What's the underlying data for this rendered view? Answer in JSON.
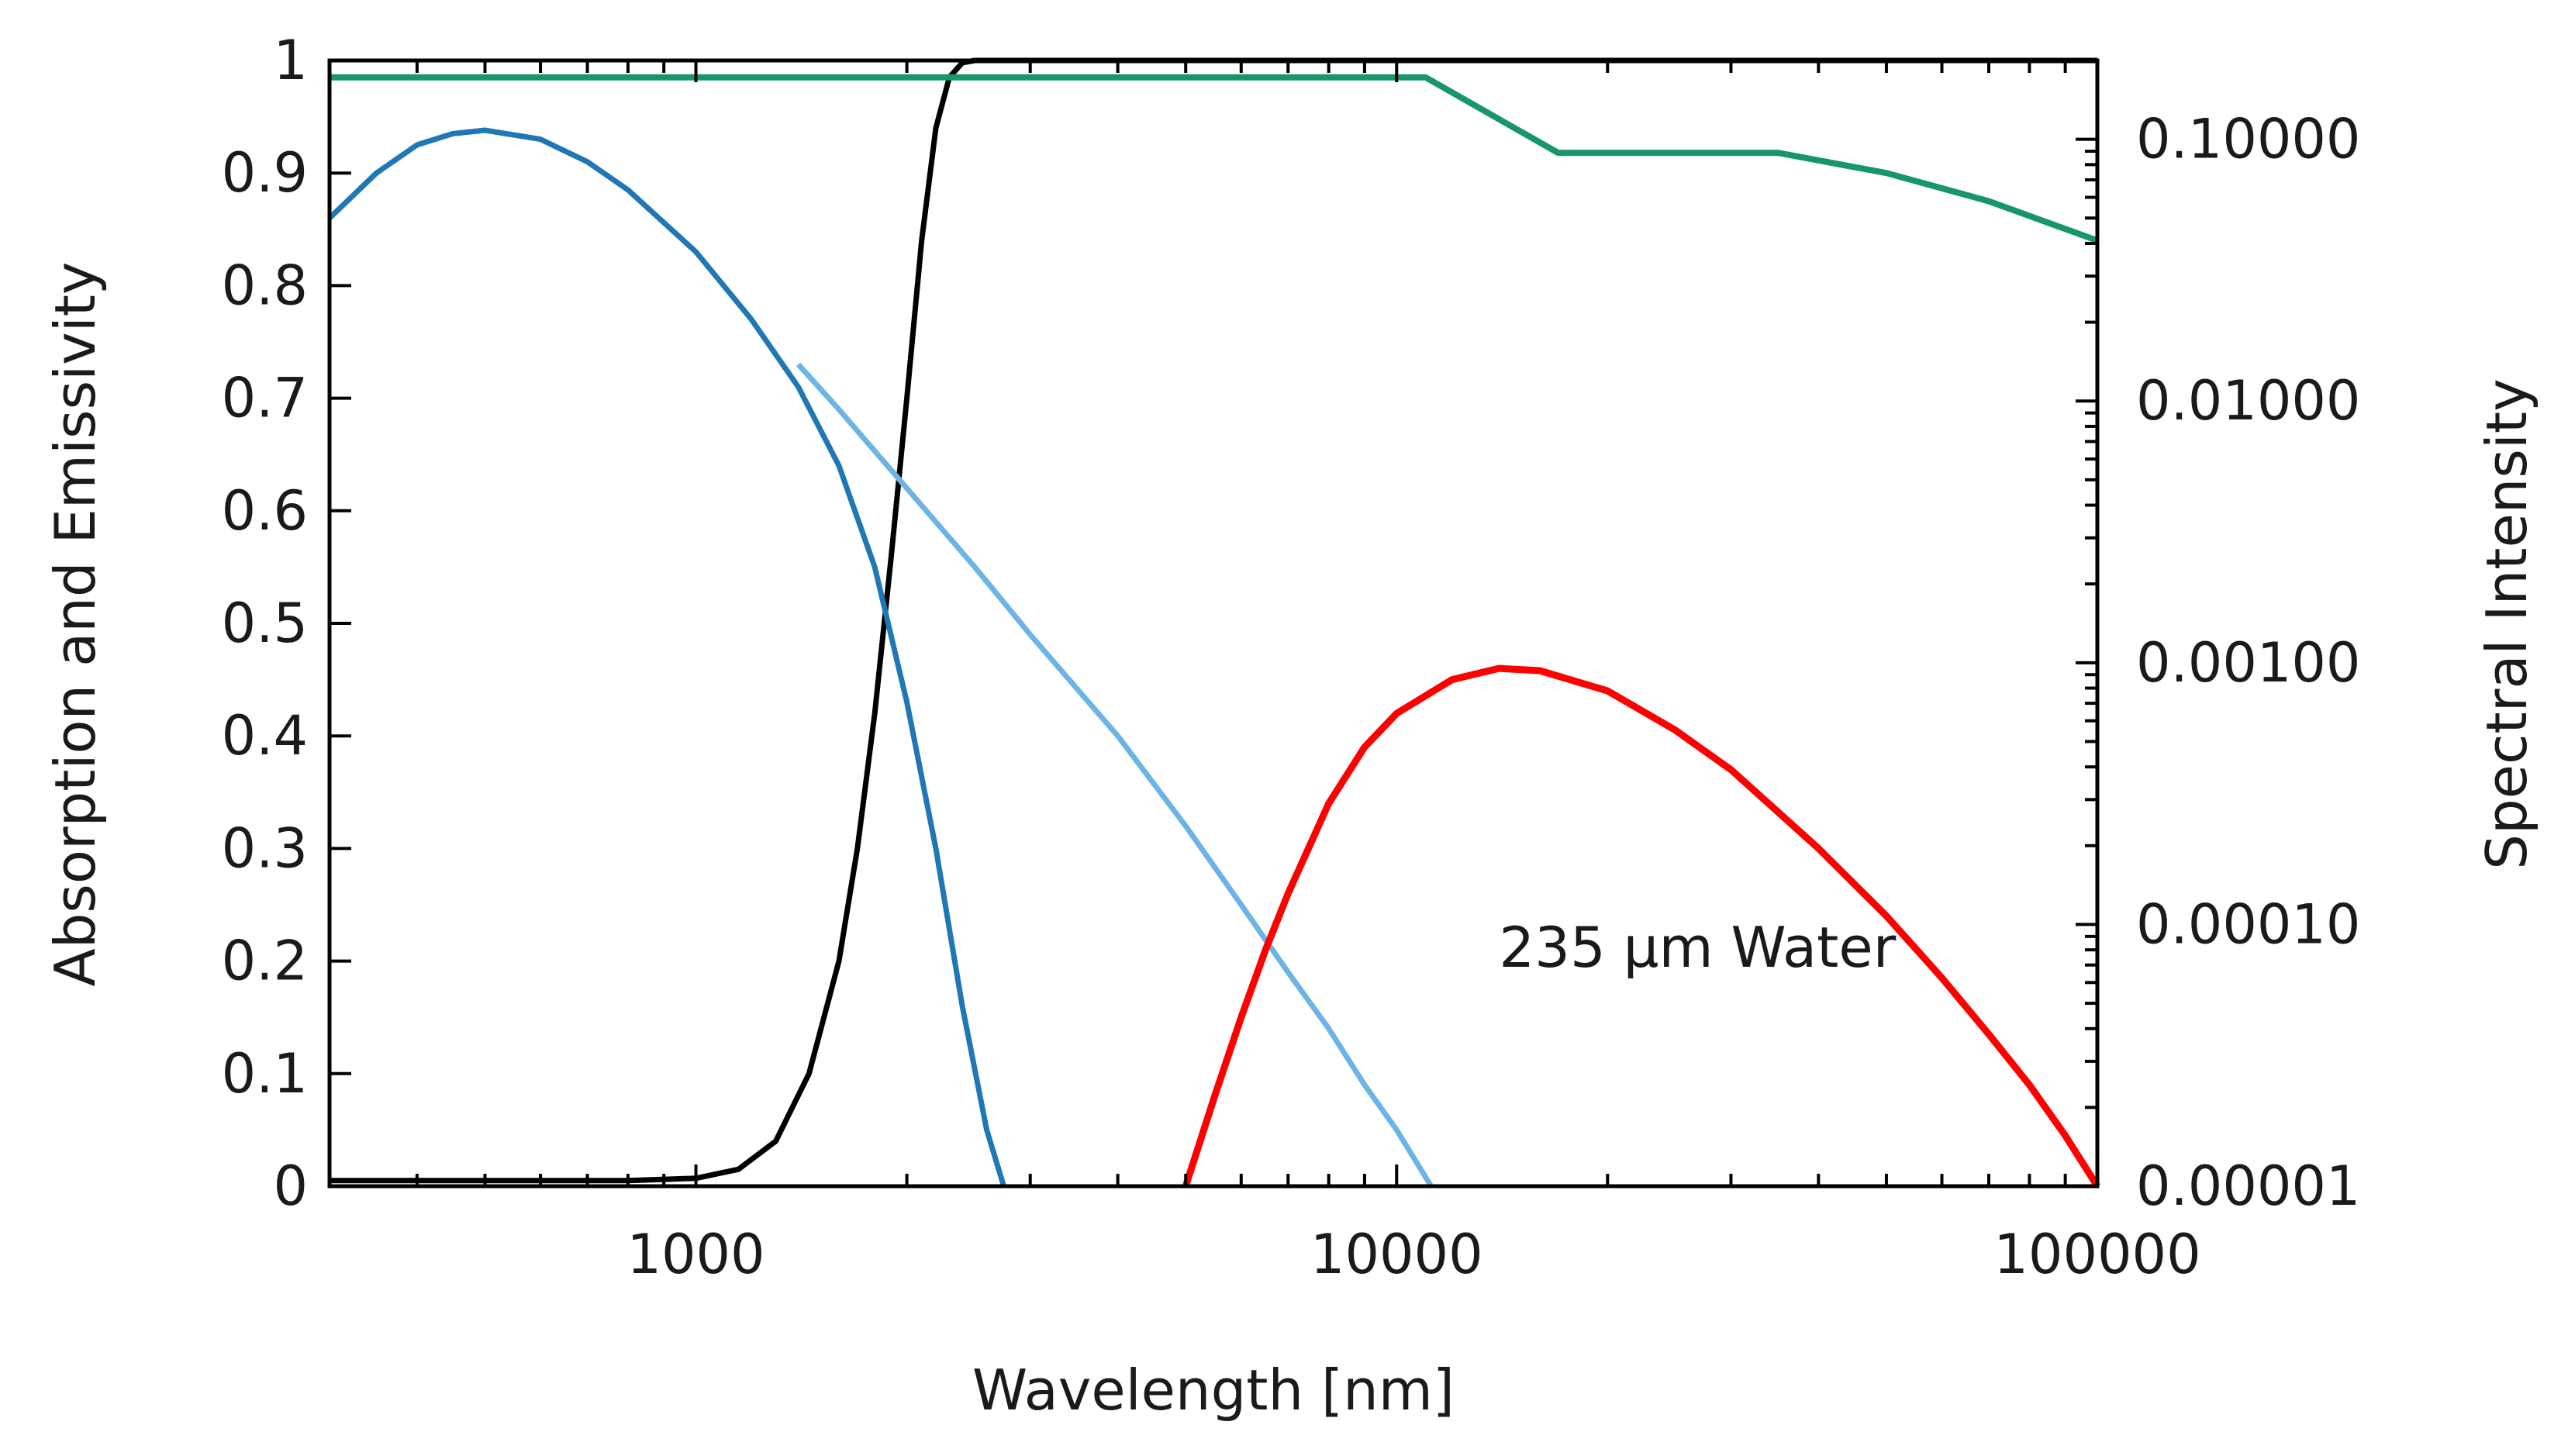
{
  "chart_data": {
    "type": "line",
    "title": "",
    "xlabel": "Wavelength [nm]",
    "ylabel": "Absorption and Emissivity",
    "y2label": "Spectral Intensity",
    "x_scale": "log",
    "xlim": [
      300,
      100000
    ],
    "ylim": [
      0,
      1
    ],
    "y2_scale": "log",
    "y2lim": [
      1e-05,
      0.2
    ],
    "x_ticks": [
      1000,
      10000,
      100000
    ],
    "x_tick_labels": [
      "1000",
      "10000",
      "100000"
    ],
    "y_ticks": [
      0,
      0.1,
      0.2,
      0.3,
      0.4,
      0.5,
      0.6,
      0.7,
      0.8,
      0.9,
      1
    ],
    "y_tick_labels": [
      "0",
      "0.1",
      "0.2",
      "0.3",
      "0.4",
      "0.5",
      "0.6",
      "0.7",
      "0.8",
      "0.9",
      "1"
    ],
    "y2_ticks": [
      1e-05,
      0.0001,
      0.001,
      0.01,
      0.1
    ],
    "y2_tick_labels": [
      "0.00001",
      "0.00010",
      "0.00100",
      "0.01000",
      "0.10000"
    ],
    "grid": false,
    "annotations": [
      {
        "text": "235 µm Water",
        "x": 14000,
        "y": 0.195
      }
    ],
    "series": [
      {
        "color": "#000000",
        "axis": "left",
        "x": [
          300,
          800,
          1000,
          1150,
          1300,
          1450,
          1600,
          1700,
          1800,
          1900,
          2000,
          2100,
          2200,
          2300,
          2400,
          2500,
          3000,
          10000,
          100000
        ],
        "y": [
          0.005,
          0.005,
          0.007,
          0.015,
          0.04,
          0.1,
          0.2,
          0.3,
          0.42,
          0.56,
          0.7,
          0.84,
          0.94,
          0.985,
          0.998,
          1.0,
          1.0,
          1.0,
          1.0
        ]
      },
      {
        "color": "#1f77b4",
        "axis": "left",
        "x": [
          300,
          350,
          400,
          450,
          500,
          600,
          700,
          800,
          1000,
          1200,
          1400,
          1600,
          1800,
          2000,
          2200,
          2400,
          2600,
          2750
        ],
        "y": [
          0.86,
          0.9,
          0.925,
          0.935,
          0.938,
          0.93,
          0.91,
          0.885,
          0.83,
          0.77,
          0.71,
          0.64,
          0.55,
          0.43,
          0.3,
          0.16,
          0.05,
          0.0
        ]
      },
      {
        "color": "#6cb4e4",
        "axis": "left",
        "x": [
          1400,
          1600,
          2000,
          2500,
          3000,
          4000,
          5000,
          6000,
          7000,
          8000,
          9000,
          10000,
          11200
        ],
        "y": [
          0.73,
          0.69,
          0.62,
          0.55,
          0.49,
          0.4,
          0.32,
          0.25,
          0.19,
          0.14,
          0.09,
          0.05,
          0.0
        ]
      },
      {
        "color": "#ff0000",
        "axis": "left",
        "x": [
          5000,
          5500,
          6000,
          6500,
          7000,
          8000,
          9000,
          10000,
          12000,
          14000,
          16000,
          20000,
          25000,
          30000,
          40000,
          50000,
          60000,
          70000,
          80000,
          90000,
          100000
        ],
        "y": [
          0.0,
          0.08,
          0.15,
          0.21,
          0.26,
          0.34,
          0.39,
          0.42,
          0.45,
          0.46,
          0.458,
          0.44,
          0.405,
          0.37,
          0.3,
          0.24,
          0.185,
          0.135,
          0.09,
          0.045,
          0.0
        ]
      },
      {
        "color": "#17966c",
        "axis": "left",
        "x": [
          300,
          10000,
          11000,
          17000,
          35000,
          50000,
          70000,
          100000
        ],
        "y": [
          0.985,
          0.985,
          0.985,
          0.918,
          0.918,
          0.9,
          0.875,
          0.84
        ]
      }
    ]
  }
}
